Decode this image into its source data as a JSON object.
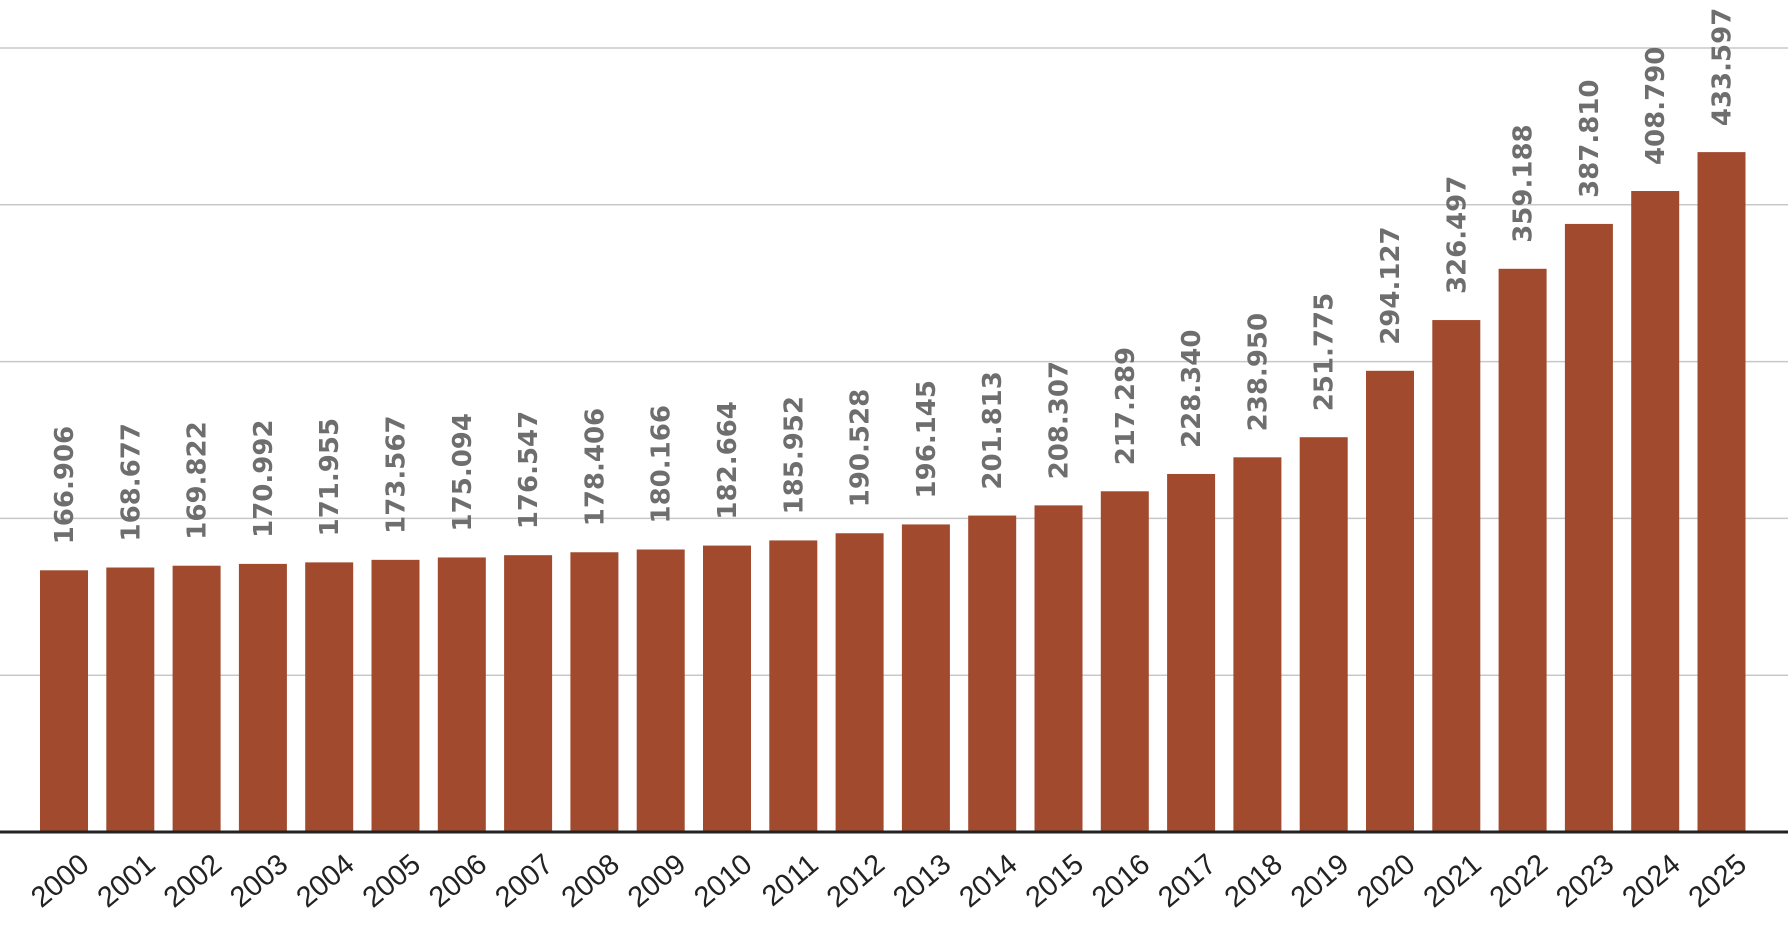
{
  "chart_data": {
    "type": "bar",
    "title": "",
    "xlabel": "",
    "ylabel": "",
    "categories": [
      "2000",
      "2001",
      "2002",
      "2003",
      "2004",
      "2005",
      "2006",
      "2007",
      "2008",
      "2009",
      "2010",
      "2011",
      "2012",
      "2013",
      "2014",
      "2015",
      "2016",
      "2017",
      "2018",
      "2019",
      "2020",
      "2021",
      "2022",
      "2023",
      "2024",
      "2025"
    ],
    "values": [
      166.906,
      168.677,
      169.822,
      170.992,
      171.955,
      173.567,
      175.094,
      176.547,
      178.406,
      180.166,
      182.664,
      185.952,
      190.528,
      196.145,
      201.813,
      208.307,
      217.289,
      228.34,
      238.95,
      251.775,
      294.127,
      326.497,
      359.188,
      387.81,
      408.79,
      433.597
    ],
    "value_labels": [
      "166.906",
      "168.677",
      "169.822",
      "170.992",
      "171.955",
      "173.567",
      "175.094",
      "176.547",
      "178.406",
      "180.166",
      "182.664",
      "185.952",
      "190.528",
      "196.145",
      "201.813",
      "208.307",
      "217.289",
      "228.340",
      "238.950",
      "251.775",
      "294.127",
      "326.497",
      "359.188",
      "387.810",
      "408.790",
      "433.597"
    ],
    "ylim": [
      0,
      500
    ],
    "gridlines": [
      100,
      200,
      300,
      400,
      500
    ],
    "grid": true,
    "legend": "none",
    "bar_color": "#a14a2e",
    "label_color": "#6e6e6e"
  }
}
